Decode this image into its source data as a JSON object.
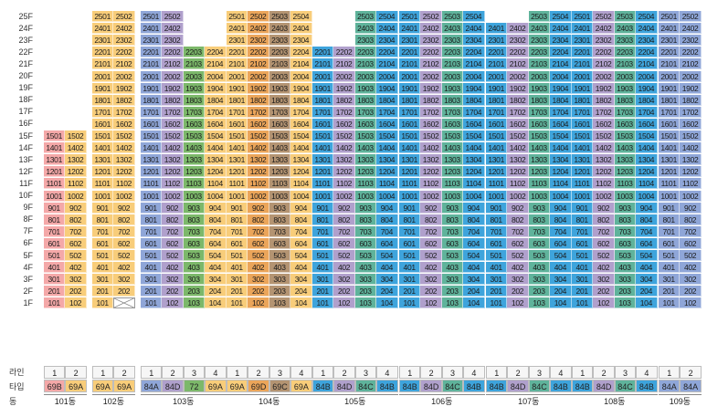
{
  "floors": [
    "25F",
    "24F",
    "23F",
    "22F",
    "21F",
    "20F",
    "19F",
    "18F",
    "17F",
    "16F",
    "15F",
    "14F",
    "13F",
    "12F",
    "11F",
    "10F",
    "9F",
    "8F",
    "7F",
    "6F",
    "5F",
    "4F",
    "3F",
    "2F",
    "1F"
  ],
  "bottom_labels": {
    "line": "라인",
    "type": "타입",
    "dong": "동"
  },
  "colors": {
    "69B": "#f4a8a8",
    "69A": "#f8cd7a",
    "84A": "#8fa6d8",
    "84D": "#b0a0cc",
    "72": "#7cb86a",
    "69D": "#eba55a",
    "69C": "#b49472",
    "84B": "#3ea4dc",
    "84C": "#5fb39b"
  },
  "buildings": [
    {
      "name": "101동",
      "x": 48,
      "top": 15,
      "cols": [
        {
          "line": "1",
          "type": "69B",
          "top": 15,
          "bottom": 1
        },
        {
          "line": "2",
          "type": "69A",
          "top": 15,
          "bottom": 1
        }
      ]
    },
    {
      "name": "102동",
      "x": 101,
      "top": 25,
      "cols": [
        {
          "line": "1",
          "type": "69A",
          "top": 25,
          "bottom": 1
        },
        {
          "line": "2",
          "type": "69A",
          "top": 25,
          "bottom": 2,
          "missing": [
            1
          ]
        }
      ]
    },
    {
      "name": "103동",
      "x": 154,
      "top": 25,
      "cols": [
        {
          "line": "1",
          "type": "84A",
          "top": 25,
          "bottom": 1
        },
        {
          "line": "2",
          "type": "84D",
          "top": 25,
          "bottom": 1
        },
        {
          "line": "3",
          "type": "72",
          "top": 22,
          "bottom": 1
        },
        {
          "line": "4",
          "type": "69A",
          "top": 22,
          "bottom": 1
        }
      ]
    },
    {
      "name": "104동",
      "x": 248,
      "top": 25,
      "cols": [
        {
          "line": "1",
          "type": "69A",
          "top": 25,
          "bottom": 1
        },
        {
          "line": "2",
          "type": "69D",
          "top": 25,
          "bottom": 1
        },
        {
          "line": "3",
          "type": "69C",
          "top": 25,
          "bottom": 1
        },
        {
          "line": "4",
          "type": "69A",
          "top": 25,
          "bottom": 1
        }
      ]
    },
    {
      "name": "105동",
      "x": 342,
      "top": 25,
      "cols": [
        {
          "line": "1",
          "type": "84B",
          "top": 22,
          "bottom": 1
        },
        {
          "line": "2",
          "type": "84D",
          "top": 22,
          "bottom": 1
        },
        {
          "line": "3",
          "type": "84C",
          "top": 25,
          "bottom": 1
        },
        {
          "line": "4",
          "type": "84B",
          "top": 25,
          "bottom": 1
        }
      ]
    },
    {
      "name": "106동",
      "x": 437,
      "top": 25,
      "cols": [
        {
          "line": "1",
          "type": "84B",
          "top": 25,
          "bottom": 1
        },
        {
          "line": "2",
          "type": "84D",
          "top": 25,
          "bottom": 1
        },
        {
          "line": "3",
          "type": "84C",
          "top": 25,
          "bottom": 1
        },
        {
          "line": "4",
          "type": "84B",
          "top": 25,
          "bottom": 1
        }
      ]
    },
    {
      "name": "107동",
      "x": 532,
      "top": 25,
      "cols": [
        {
          "line": "1",
          "type": "84B",
          "top": 24,
          "bottom": 1
        },
        {
          "line": "2",
          "type": "84D",
          "top": 24,
          "bottom": 1
        },
        {
          "line": "3",
          "type": "84C",
          "top": 25,
          "bottom": 1
        },
        {
          "line": "4",
          "type": "84B",
          "top": 25,
          "bottom": 1
        }
      ]
    },
    {
      "name": "108동",
      "x": 626,
      "top": 25,
      "cols": [
        {
          "line": "1",
          "type": "84B",
          "top": 25,
          "bottom": 1
        },
        {
          "line": "2",
          "type": "84D",
          "top": 25,
          "bottom": 1
        },
        {
          "line": "3",
          "type": "84C",
          "top": 25,
          "bottom": 1
        },
        {
          "line": "4",
          "type": "84B",
          "top": 25,
          "bottom": 1
        }
      ]
    },
    {
      "name": "109동",
      "x": 721,
      "top": 25,
      "cols": [
        {
          "line": "1",
          "type": "84A",
          "top": 25,
          "bottom": 1
        },
        {
          "line": "2",
          "type": "84A",
          "top": 25,
          "bottom": 1
        }
      ]
    }
  ]
}
